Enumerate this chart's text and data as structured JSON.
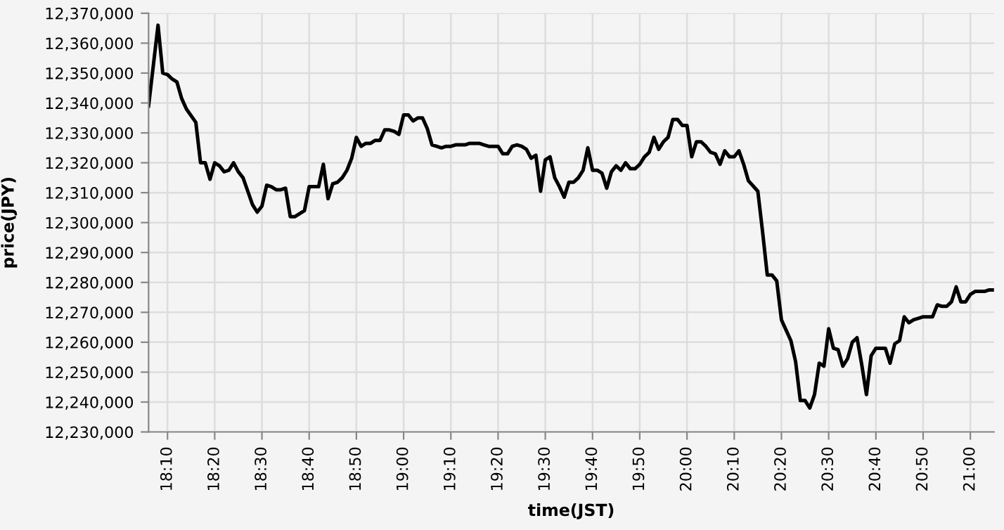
{
  "chart_data": {
    "type": "line",
    "xlabel": "time(JST)",
    "ylabel": "price(JPY)",
    "x": [
      18.1,
      18.1333,
      18.15,
      18.1667,
      18.1833,
      18.2,
      18.2167,
      18.2333,
      18.2667,
      18.2833,
      18.3,
      18.3167,
      18.3333,
      18.35,
      18.3667,
      18.3833,
      18.4,
      18.4167,
      18.4333,
      18.45,
      18.4667,
      18.4833,
      18.5,
      18.5167,
      18.5333,
      18.55,
      18.5667,
      18.5833,
      18.6,
      18.6167,
      18.6333,
      18.65,
      18.6667,
      18.6833,
      18.7,
      18.7167,
      18.7333,
      18.75,
      18.7667,
      18.7833,
      18.8,
      18.8167,
      18.8333,
      18.85,
      18.8667,
      18.8833,
      18.9,
      18.9167,
      18.9333,
      18.95,
      18.9667,
      18.9833,
      19.0,
      19.0167,
      19.0333,
      19.05,
      19.0667,
      19.0833,
      19.1,
      19.1167,
      19.1333,
      19.15,
      19.1667,
      19.1833,
      19.2,
      19.2167,
      19.2333,
      19.25,
      19.2667,
      19.2833,
      19.3,
      19.3333,
      19.35,
      19.3667,
      19.3833,
      19.4,
      19.4167,
      19.4333,
      19.45,
      19.4667,
      19.4833,
      19.5,
      19.5167,
      19.5333,
      19.55,
      19.5667,
      19.5833,
      19.6,
      19.6167,
      19.6333,
      19.65,
      19.6667,
      19.6833,
      19.7,
      19.7167,
      19.7333,
      19.75,
      19.7667,
      19.7833,
      19.8,
      19.8167,
      19.8333,
      19.85,
      19.8667,
      19.8833,
      19.9,
      19.9167,
      19.9333,
      19.95,
      19.9667,
      19.9833,
      20.0,
      20.0167,
      20.0333,
      20.05,
      20.0667,
      20.0833,
      20.1,
      20.1167,
      20.1333,
      20.15,
      20.1667,
      20.1833,
      20.2,
      20.2167,
      20.25,
      20.2667,
      20.2833,
      20.3,
      20.3167,
      20.3333,
      20.35,
      20.3667,
      20.3833,
      20.4,
      20.4167,
      20.4333,
      20.45,
      20.4667,
      20.4833,
      20.5,
      20.5167,
      20.5333,
      20.55,
      20.5667,
      20.5833,
      20.6,
      20.6167,
      20.6333,
      20.65,
      20.6667,
      20.6833,
      20.7,
      20.7167,
      20.7333,
      20.75,
      20.7667,
      20.7833,
      20.8,
      20.8167,
      20.8333,
      20.85,
      20.8667,
      20.8833,
      20.9,
      20.9167,
      20.9333,
      20.95,
      20.9667,
      20.9833,
      21.0,
      21.0167,
      21.0333,
      21.05,
      21.0667,
      21.0833
    ],
    "series": [
      {
        "color": "#000000",
        "values": [
          12339000,
          12366000,
          12350000,
          12349500,
          12348000,
          12347000,
          12341500,
          12338000,
          12333500,
          12320000,
          12320000,
          12314500,
          12320000,
          12319000,
          12317000,
          12317500,
          12320000,
          12317000,
          12315000,
          12310500,
          12306000,
          12303500,
          12305500,
          12312500,
          12312000,
          12311000,
          12311000,
          12311500,
          12302000,
          12302000,
          12303000,
          12304000,
          12312000,
          12312000,
          12312000,
          12319500,
          12308000,
          12313000,
          12313500,
          12315000,
          12317500,
          12321500,
          12328500,
          12325500,
          12326500,
          12326500,
          12327500,
          12327500,
          12331000,
          12331000,
          12330500,
          12329500,
          12336000,
          12336000,
          12334000,
          12335000,
          12335000,
          12331500,
          12326000,
          12325500,
          12325000,
          12325500,
          12325500,
          12326000,
          12326000,
          12326000,
          12326500,
          12326500,
          12326500,
          12326000,
          12325500,
          12325500,
          12323000,
          12323000,
          12325500,
          12326000,
          12325500,
          12324500,
          12321500,
          12322500,
          12310500,
          12321000,
          12322000,
          12315000,
          12312000,
          12308500,
          12313500,
          12313500,
          12315000,
          12317500,
          12325000,
          12317500,
          12317500,
          12316500,
          12311500,
          12317000,
          12319000,
          12317500,
          12320000,
          12318000,
          12318000,
          12319500,
          12322000,
          12323500,
          12328500,
          12324500,
          12327000,
          12328500,
          12334500,
          12334500,
          12332500,
          12332500,
          12322000,
          12327000,
          12327000,
          12325500,
          12323500,
          12323000,
          12319500,
          12324000,
          12322000,
          12322000,
          12324000,
          12319500,
          12314000,
          12310500,
          12297000,
          12282500,
          12282500,
          12280500,
          12267500,
          12264000,
          12260500,
          12253500,
          12240500,
          12240500,
          12238000,
          12242500,
          12253000,
          12252000,
          12264500,
          12258000,
          12257500,
          12252000,
          12254500,
          12260000,
          12261500,
          12252500,
          12242500,
          12255500,
          12258000,
          12258000,
          12258000,
          12253000,
          12259500,
          12260500,
          12268500,
          12266500,
          12267500,
          12268000,
          12268500,
          12268500,
          12268500,
          12272500,
          12272000,
          12272000,
          12273500,
          12278500,
          12273500,
          12273500,
          12276000,
          12277000,
          12277000,
          12277000,
          12277500,
          12277500
        ]
      }
    ],
    "xlim": [
      18.1,
      21.0833
    ],
    "xticks": [
      {
        "value": 18.1667,
        "label": "18:10"
      },
      {
        "value": 18.3333,
        "label": "18:20"
      },
      {
        "value": 18.5,
        "label": "18:30"
      },
      {
        "value": 18.6667,
        "label": "18:40"
      },
      {
        "value": 18.8333,
        "label": "18:50"
      },
      {
        "value": 19,
        "label": "19:00"
      },
      {
        "value": 19.1667,
        "label": "19:10"
      },
      {
        "value": 19.3333,
        "label": "19:20"
      },
      {
        "value": 19.5,
        "label": "19:30"
      },
      {
        "value": 19.6667,
        "label": "19:40"
      },
      {
        "value": 19.8333,
        "label": "19:50"
      },
      {
        "value": 20,
        "label": "20:00"
      },
      {
        "value": 20.1667,
        "label": "20:10"
      },
      {
        "value": 20.3333,
        "label": "20:20"
      },
      {
        "value": 20.5,
        "label": "20:30"
      },
      {
        "value": 20.6667,
        "label": "20:40"
      },
      {
        "value": 20.8333,
        "label": "20:50"
      },
      {
        "value": 21,
        "label": "21:00"
      }
    ],
    "ylim": [
      12230000,
      12370000
    ],
    "yticks": [
      {
        "value": 12230000,
        "label": "12,230,000"
      },
      {
        "value": 12240000,
        "label": "12,240,000"
      },
      {
        "value": 12250000,
        "label": "12,250,000"
      },
      {
        "value": 12260000,
        "label": "12,260,000"
      },
      {
        "value": 12270000,
        "label": "12,270,000"
      },
      {
        "value": 12280000,
        "label": "12,280,000"
      },
      {
        "value": 12290000,
        "label": "12,290,000"
      },
      {
        "value": 12300000,
        "label": "12,300,000"
      },
      {
        "value": 12310000,
        "label": "12,310,000"
      },
      {
        "value": 12320000,
        "label": "12,320,000"
      },
      {
        "value": 12330000,
        "label": "12,330,000"
      },
      {
        "value": 12340000,
        "label": "12,340,000"
      },
      {
        "value": 12350000,
        "label": "12,350,000"
      },
      {
        "value": 12360000,
        "label": "12,360,000"
      },
      {
        "value": 12370000,
        "label": "12,370,000"
      }
    ],
    "grid": true,
    "marker": "none",
    "line_style": "solid"
  }
}
